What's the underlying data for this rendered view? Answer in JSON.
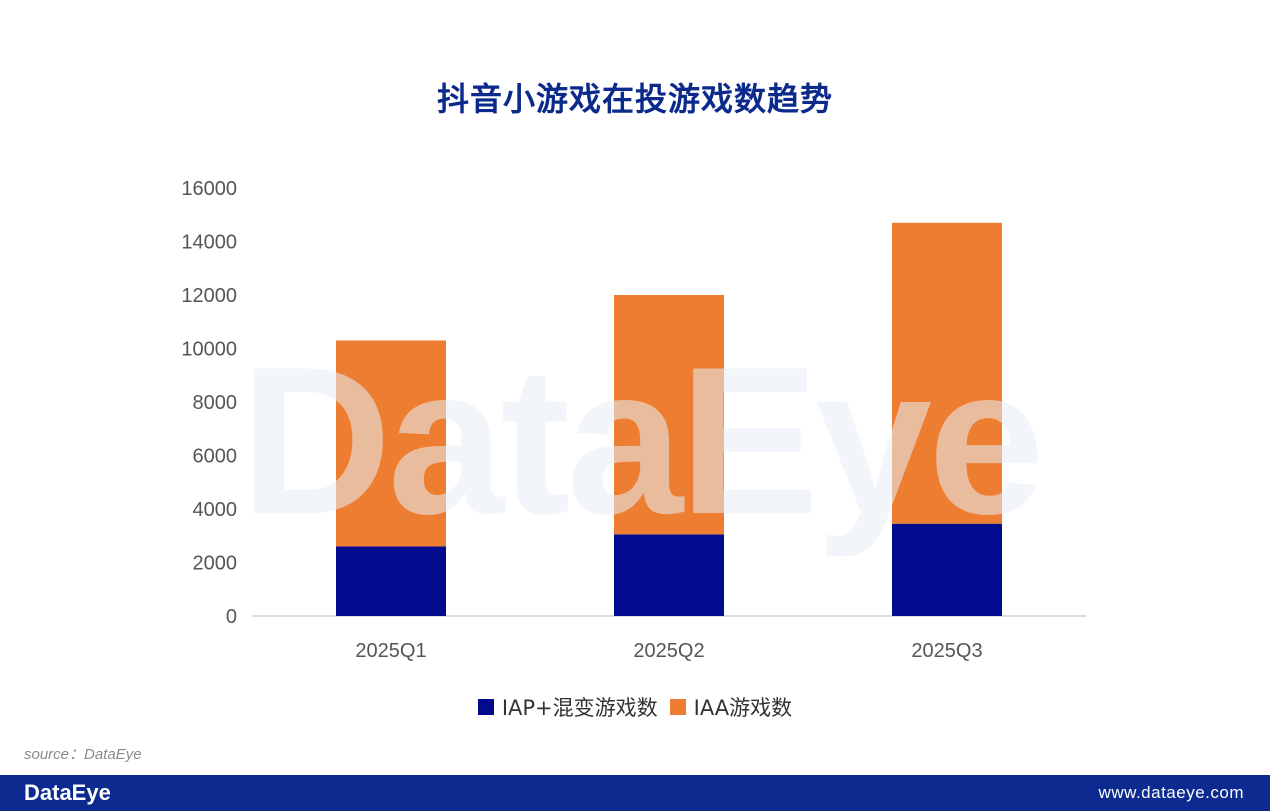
{
  "title": "抖音小游戏在投游戏数趋势",
  "watermark": "DataEye",
  "source": "source：DataEye",
  "footer": {
    "logo": "DataEye",
    "url": "www.dataeye.com"
  },
  "colors": {
    "title": "#0b2a8c",
    "series_iap": "#020a8e",
    "series_iaa": "#ed7d31",
    "footer_bg": "#0c2a8f"
  },
  "chart_data": {
    "type": "bar",
    "stacked": true,
    "categories": [
      "2025Q1",
      "2025Q2",
      "2025Q3"
    ],
    "series": [
      {
        "name": "IAP+混变游戏数",
        "values": [
          2600,
          3050,
          3450
        ],
        "color": "#020a8e"
      },
      {
        "name": "IAA游戏数",
        "values": [
          7700,
          8950,
          11250
        ],
        "color": "#ed7d31"
      }
    ],
    "ylim": [
      0,
      16000
    ],
    "yticks": [
      0,
      2000,
      4000,
      6000,
      8000,
      10000,
      12000,
      14000,
      16000
    ],
    "grid": false,
    "legend": "bottom"
  }
}
